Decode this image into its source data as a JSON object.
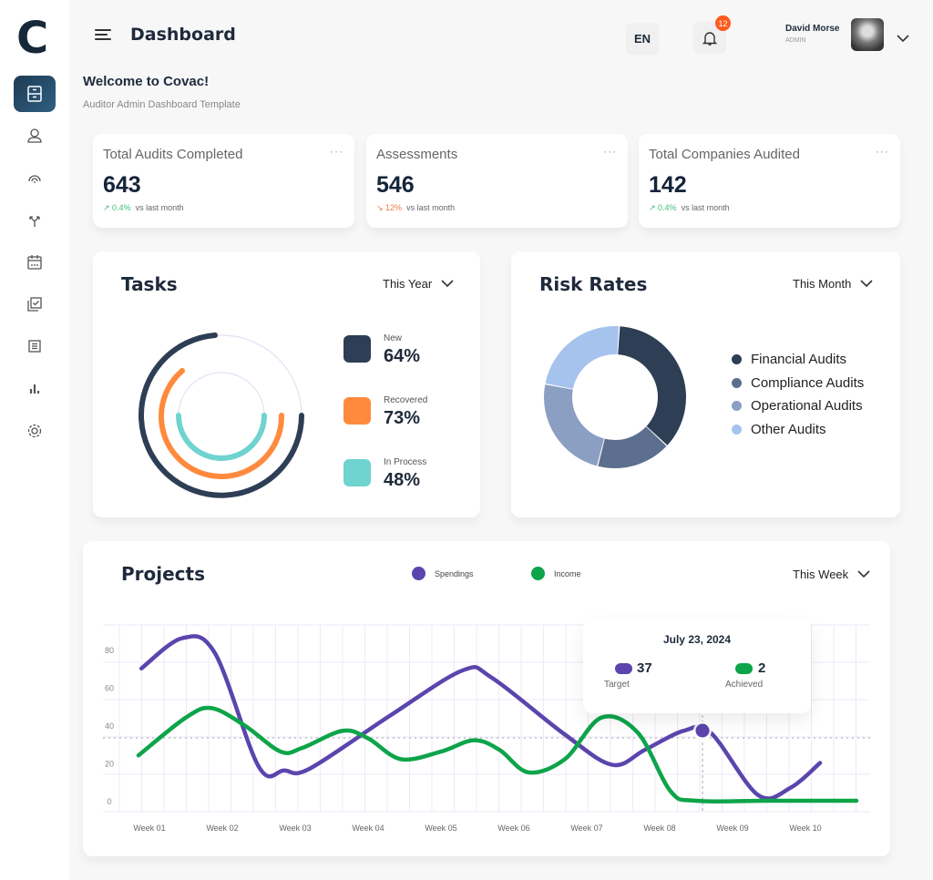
{
  "brand": {
    "logo": "C"
  },
  "sidebar": {
    "items": [
      {
        "icon": "archive-icon",
        "active": true
      },
      {
        "icon": "user-icon"
      },
      {
        "icon": "fingerprint-icon"
      },
      {
        "icon": "split-arrows-icon"
      },
      {
        "icon": "calendar-icon"
      },
      {
        "icon": "checklist-icon"
      },
      {
        "icon": "list-icon"
      },
      {
        "icon": "bar-chart-icon"
      },
      {
        "icon": "gear-icon"
      }
    ]
  },
  "header": {
    "title": "Dashboard",
    "language": "EN",
    "notifications": "12",
    "user_name": "David Morse",
    "user_role": "ADMIN"
  },
  "welcome": {
    "title": "Welcome to Covac!",
    "subtitle": "Auditor Admin Dashboard Template"
  },
  "stats": [
    {
      "title": "Total Audits Completed",
      "value": "643",
      "delta": "↗ 0.4%",
      "trend": "up",
      "note": "vs last month"
    },
    {
      "title": "Assessments",
      "value": "546",
      "delta": "↘ 12%",
      "trend": "down",
      "note": "vs last month"
    },
    {
      "title": "Total Companies Audited",
      "value": "142",
      "delta": "↗ 0.4%",
      "trend": "up",
      "note": "vs last month"
    }
  ],
  "tasks": {
    "title": "Tasks",
    "period": "This Year",
    "items": [
      {
        "label": "New",
        "value": "64%",
        "color": "#2d3e55"
      },
      {
        "label": "Recovered",
        "value": "73%",
        "color": "#ff8a3d"
      },
      {
        "label": "In Process",
        "value": "48%",
        "color": "#6fd3cf"
      }
    ]
  },
  "risk": {
    "title": "Risk Rates",
    "period": "This Month",
    "items": [
      {
        "label": "Financial Audits",
        "color": "#2d3e55",
        "share": 36
      },
      {
        "label": "Compliance Audits",
        "color": "#5c6f8e",
        "share": 17
      },
      {
        "label": "Operational Audits",
        "color": "#8b9fc2",
        "share": 24
      },
      {
        "label": "Other Audits",
        "color": "#a6c3ee",
        "share": 23
      }
    ]
  },
  "projects": {
    "title": "Projects",
    "period": "This Week",
    "tooltip": {
      "date": "July 23, 2024",
      "target_value": "37",
      "target_label": "Target",
      "achieved_value": "2",
      "achieved_label": "Achieved"
    }
  },
  "chart_data": {
    "type": "line",
    "categories": [
      "Week 01",
      "Week 02",
      "Week 03",
      "Week 04",
      "Week 05",
      "Week 06",
      "Week 07",
      "Week 08",
      "Week 09",
      "Week 10"
    ],
    "yticks": [
      "0",
      "20",
      "40",
      "60",
      "80"
    ],
    "ylim": [
      0,
      90
    ],
    "grid": true,
    "legend": "top-center",
    "series": [
      {
        "name": "Spendings",
        "color": "#5b45ad",
        "points": [
          [
            0.89,
            70
          ],
          [
            1.45,
            86
          ],
          [
            1.9,
            78
          ],
          [
            2.5,
            18
          ],
          [
            2.85,
            16
          ],
          [
            3.2,
            17
          ],
          [
            4.3,
            45
          ],
          [
            5.3,
            69
          ],
          [
            5.7,
            65
          ],
          [
            6.7,
            35
          ],
          [
            7.35,
            19
          ],
          [
            7.8,
            27
          ],
          [
            8.33,
            37
          ],
          [
            8.7,
            36
          ],
          [
            9.35,
            3
          ],
          [
            9.8,
            7
          ],
          [
            10.2,
            20
          ]
        ]
      },
      {
        "name": "Income",
        "color": "#0ea44a",
        "points": [
          [
            0.85,
            24
          ],
          [
            1.5,
            44
          ],
          [
            1.85,
            49
          ],
          [
            2.3,
            40
          ],
          [
            2.8,
            26
          ],
          [
            3.1,
            28
          ],
          [
            3.65,
            37
          ],
          [
            4.0,
            33
          ],
          [
            4.45,
            22
          ],
          [
            5.0,
            26
          ],
          [
            5.45,
            32
          ],
          [
            5.8,
            27
          ],
          [
            6.2,
            15
          ],
          [
            6.7,
            22
          ],
          [
            7.2,
            44
          ],
          [
            7.7,
            36
          ],
          [
            8.15,
            5
          ],
          [
            8.5,
            0
          ],
          [
            9.5,
            0
          ],
          [
            10.7,
            0
          ]
        ]
      }
    ]
  }
}
